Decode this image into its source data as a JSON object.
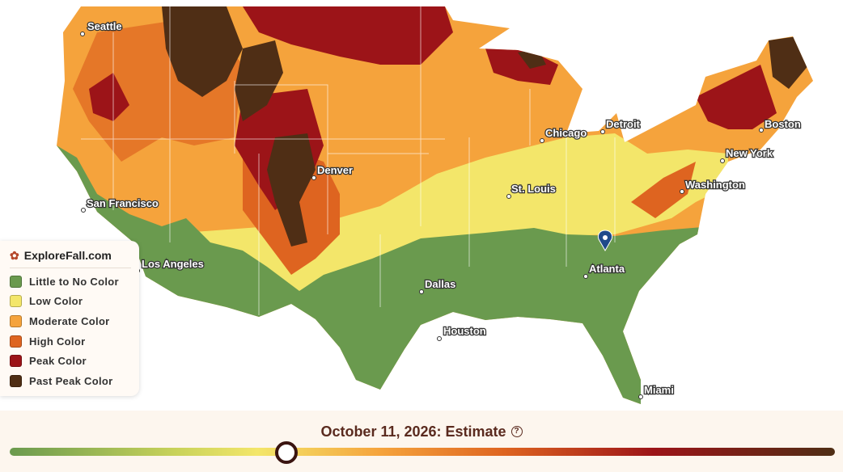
{
  "legend": {
    "title": "ExploreFall.com",
    "items": [
      {
        "label": "Little to No Color",
        "color": "#6a9a4e"
      },
      {
        "label": "Low Color",
        "color": "#f3e66a"
      },
      {
        "label": "Moderate Color",
        "color": "#f5a33c"
      },
      {
        "label": "High Color",
        "color": "#de6420"
      },
      {
        "label": "Peak Color",
        "color": "#9c1418"
      },
      {
        "label": "Past Peak Color",
        "color": "#4f2e15"
      }
    ]
  },
  "cities": [
    "Seattle",
    "San Francisco",
    "Los Angeles",
    "Denver",
    "Dallas",
    "Houston",
    "Chicago",
    "Detroit",
    "St. Louis",
    "Atlanta",
    "Miami",
    "Washington",
    "New York",
    "Boston"
  ],
  "timeline": {
    "label": "October 11, 2026: Estimate"
  }
}
